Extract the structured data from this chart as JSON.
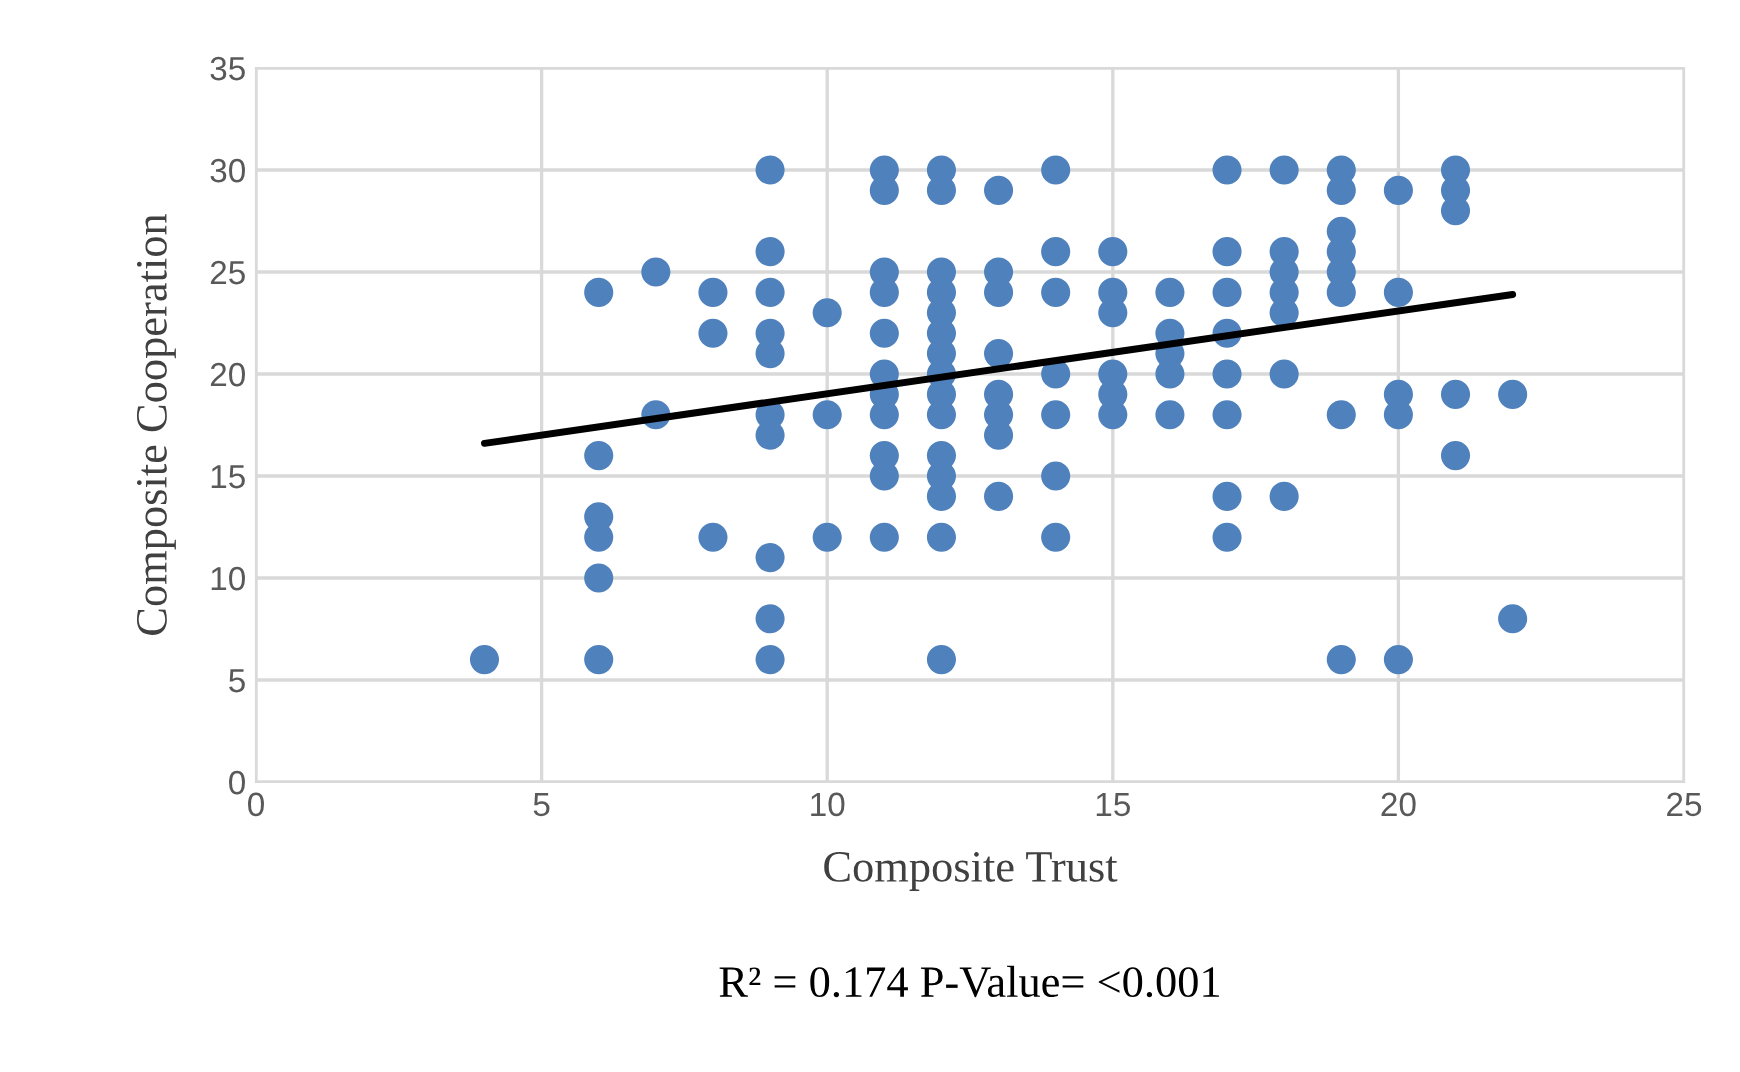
{
  "chart_data": {
    "type": "scatter",
    "xlabel": "Composite Trust",
    "ylabel": "Composite Cooperation",
    "annotations": [
      "R² = 0.174 P-Value= <0.001"
    ],
    "xlim": [
      0,
      25
    ],
    "xticks": [
      0,
      5,
      10,
      15,
      20,
      25
    ],
    "ylim": [
      0,
      35
    ],
    "yticks": [
      0,
      5,
      10,
      15,
      20,
      25,
      30,
      35
    ],
    "grid": true,
    "marker": "circle",
    "series": [
      {
        "color": "#4f81bd",
        "x": [
          4,
          6,
          6,
          6,
          6,
          6,
          6,
          7,
          7,
          8,
          8,
          8,
          9,
          9,
          9,
          9,
          9,
          9,
          9,
          9,
          9,
          9,
          10,
          10,
          10,
          11,
          11,
          11,
          11,
          11,
          11,
          11,
          11,
          11,
          11,
          11,
          12,
          12,
          12,
          12,
          12,
          12,
          12,
          12,
          12,
          12,
          12,
          12,
          12,
          12,
          12,
          13,
          13,
          13,
          13,
          13,
          13,
          13,
          13,
          14,
          14,
          14,
          14,
          14,
          14,
          14,
          15,
          15,
          15,
          15,
          15,
          15,
          16,
          16,
          16,
          16,
          16,
          17,
          17,
          17,
          17,
          17,
          17,
          17,
          17,
          18,
          18,
          18,
          18,
          18,
          18,
          18,
          19,
          19,
          19,
          19,
          19,
          19,
          19,
          19,
          20,
          20,
          20,
          20,
          20,
          21,
          21,
          21,
          21,
          21,
          22,
          22
        ],
        "values": [
          6,
          24,
          16,
          13,
          12,
          10,
          6,
          25,
          18,
          24,
          22,
          12,
          30,
          26,
          24,
          22,
          21,
          18,
          17,
          11,
          8,
          6,
          23,
          18,
          12,
          30,
          29,
          25,
          24,
          22,
          20,
          19,
          18,
          16,
          15,
          12,
          30,
          29,
          25,
          24,
          23,
          22,
          21,
          20,
          19,
          18,
          16,
          15,
          14,
          12,
          6,
          29,
          25,
          24,
          21,
          19,
          18,
          17,
          14,
          30,
          26,
          24,
          20,
          18,
          15,
          12,
          26,
          24,
          23,
          20,
          19,
          18,
          24,
          22,
          21,
          20,
          18,
          30,
          26,
          24,
          22,
          20,
          18,
          14,
          12,
          30,
          26,
          25,
          24,
          23,
          20,
          14,
          30,
          29,
          27,
          26,
          25,
          24,
          18,
          6,
          29,
          24,
          19,
          18,
          6,
          30,
          29,
          28,
          19,
          16,
          19,
          8
        ]
      },
      {
        "type": "line",
        "color": "#000000",
        "marker": "none",
        "line_style": "solid",
        "x": [
          4,
          22
        ],
        "values": [
          16.6,
          23.9
        ]
      }
    ]
  }
}
